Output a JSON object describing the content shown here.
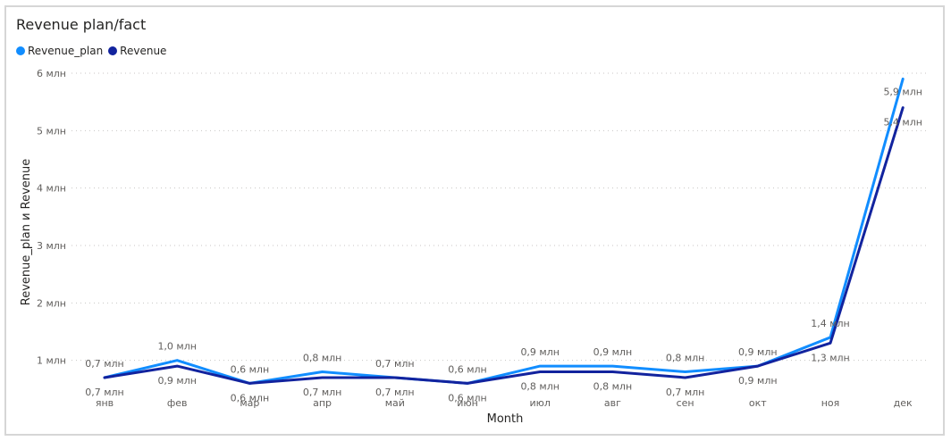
{
  "chart_data": {
    "type": "line",
    "title": "Revenue plan/fact",
    "xlabel": "Month",
    "ylabel": "Revenue_plan и Revenue",
    "categories": [
      "янв",
      "фев",
      "мар",
      "апр",
      "май",
      "июн",
      "июл",
      "авг",
      "сен",
      "окт",
      "ноя",
      "дек"
    ],
    "ylim": [
      0,
      6
    ],
    "y_ticks": [
      1,
      2,
      3,
      4,
      5,
      6
    ],
    "y_tick_labels": [
      "1 млн",
      "2 млн",
      "3 млн",
      "4 млн",
      "5 млн",
      "6 млн"
    ],
    "grid": "horizontal dotted",
    "legend_position": "top-left",
    "series": [
      {
        "name": "Revenue_plan",
        "color": "#118dff",
        "values": [
          0.7,
          1.0,
          0.6,
          0.8,
          0.7,
          0.6,
          0.9,
          0.9,
          0.8,
          0.9,
          1.4,
          5.9
        ],
        "labels": [
          "0,7 млн",
          "1,0 млн",
          "0,6 млн",
          "0,8 млн",
          "0,7 млн",
          "0,6 млн",
          "0,9 млн",
          "0,9 млн",
          "0,8 млн",
          "0,9 млн",
          "1,4 млн",
          "5,9 млн"
        ]
      },
      {
        "name": "Revenue",
        "color": "#12239e",
        "values": [
          0.7,
          0.9,
          0.6,
          0.7,
          0.7,
          0.6,
          0.8,
          0.8,
          0.7,
          0.9,
          1.3,
          5.4
        ],
        "labels": [
          "0,7 млн",
          "0,9 млн",
          "0,6 млн",
          "0,7 млн",
          "0,7 млн",
          "0,6 млн",
          "0,8 млн",
          "0,8 млн",
          "0,7 млн",
          "0,9 млн",
          "1,3 млн",
          "5,4 млн"
        ]
      }
    ]
  }
}
